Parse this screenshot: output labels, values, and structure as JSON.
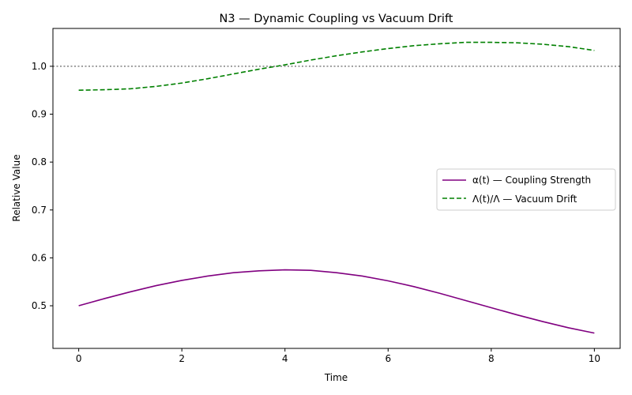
{
  "chart_data": {
    "type": "line",
    "title": "N3 — Dynamic Coupling vs Vacuum Drift",
    "xlabel": "Time",
    "ylabel": "Relative Value",
    "xlim": [
      -0.5,
      10.5
    ],
    "ylim": [
      0.411,
      1.079
    ],
    "x_ticks": [
      0,
      2,
      4,
      6,
      8,
      10
    ],
    "x_tick_labels": [
      "0",
      "2",
      "4",
      "6",
      "8",
      "10"
    ],
    "y_ticks": [
      0.5,
      0.6,
      0.7,
      0.8,
      0.9,
      1.0
    ],
    "y_tick_labels": [
      "0.5",
      "0.6",
      "0.7",
      "0.8",
      "0.9",
      "1.0"
    ],
    "grid": false,
    "legend_position": "center-right",
    "reference_line": {
      "y": 1.0,
      "style": "dotted",
      "color": "#808080"
    },
    "x": [
      0,
      0.5,
      1,
      1.5,
      2,
      2.5,
      3,
      3.5,
      4,
      4.5,
      5,
      5.5,
      6,
      6.5,
      7,
      7.5,
      8,
      8.5,
      9,
      9.5,
      10
    ],
    "series": [
      {
        "name": "α(t) — Coupling Strength",
        "color": "#800080",
        "style": "solid",
        "values": [
          0.5,
          0.515,
          0.529,
          0.542,
          0.553,
          0.562,
          0.569,
          0.573,
          0.575,
          0.574,
          0.569,
          0.562,
          0.552,
          0.54,
          0.526,
          0.511,
          0.496,
          0.481,
          0.467,
          0.454,
          0.443
        ]
      },
      {
        "name": "Λ(t)/Λ — Vacuum Drift",
        "color": "#008000",
        "style": "dashed",
        "values": [
          0.95,
          0.951,
          0.953,
          0.958,
          0.965,
          0.974,
          0.984,
          0.994,
          1.003,
          1.013,
          1.022,
          1.03,
          1.037,
          1.043,
          1.047,
          1.05,
          1.05,
          1.049,
          1.046,
          1.041,
          1.033
        ]
      }
    ]
  }
}
